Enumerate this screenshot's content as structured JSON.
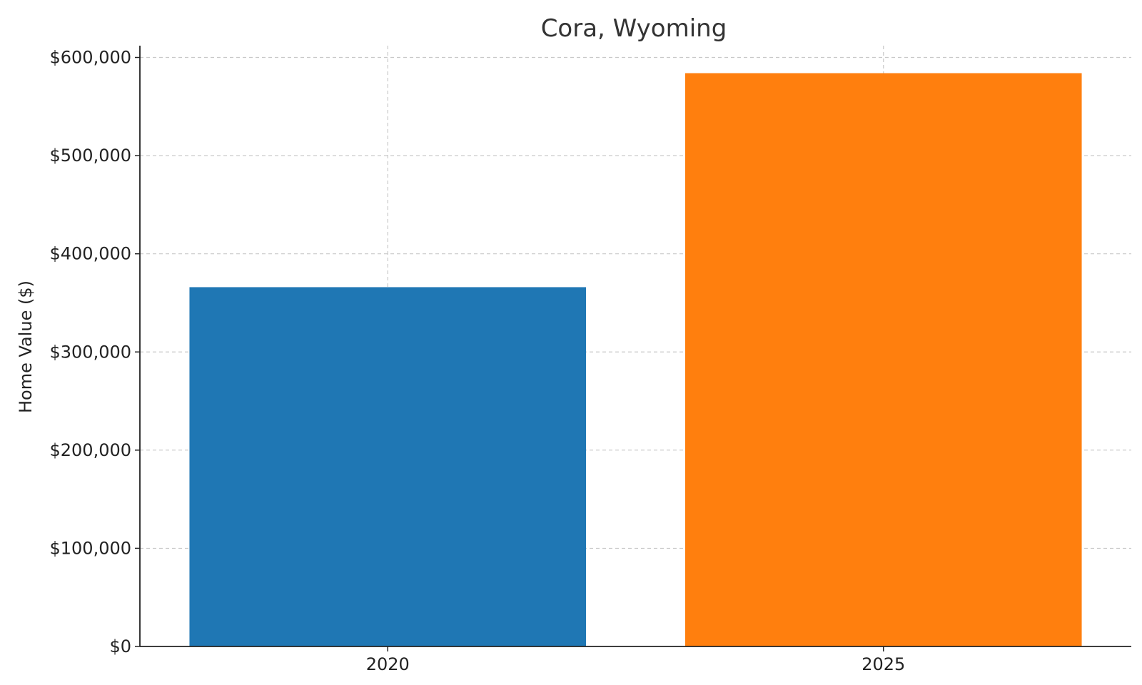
{
  "chart_data": {
    "type": "bar",
    "title": "Cora, Wyoming",
    "xlabel": "",
    "ylabel": "Home Value ($)",
    "categories": [
      "2020",
      "2025"
    ],
    "values": [
      366000,
      584000
    ],
    "bar_colors": [
      "#1f77b4",
      "#ff7f0e"
    ],
    "ylim": [
      0,
      612000
    ],
    "yticks": [
      0,
      100000,
      200000,
      300000,
      400000,
      500000,
      600000
    ],
    "ytick_labels": [
      "$0",
      "$100,000",
      "$200,000",
      "$300,000",
      "$400,000",
      "$500,000",
      "$600,000"
    ],
    "grid": true
  }
}
